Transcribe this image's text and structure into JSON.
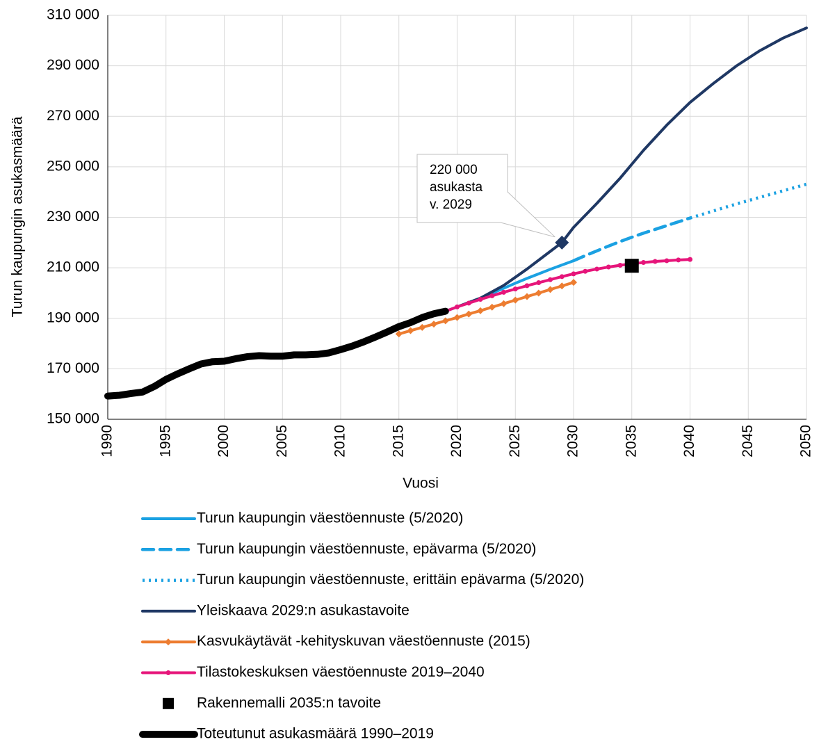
{
  "chart_data": {
    "type": "line",
    "xlabel": "Vuosi",
    "ylabel": "Turun kaupungin asukasmäärä",
    "xlim": [
      1990,
      2050
    ],
    "xticks": [
      1990,
      1995,
      2000,
      2005,
      2010,
      2015,
      2020,
      2025,
      2030,
      2035,
      2040,
      2045,
      2050
    ],
    "ylim": [
      150000,
      310000
    ],
    "yticks": [
      {
        "value": 150000,
        "label": "150 000"
      },
      {
        "value": 170000,
        "label": "170 000"
      },
      {
        "value": 190000,
        "label": "190 000"
      },
      {
        "value": 210000,
        "label": "210 000"
      },
      {
        "value": 230000,
        "label": "230 000"
      },
      {
        "value": 250000,
        "label": "250 000"
      },
      {
        "value": 270000,
        "label": "270 000"
      },
      {
        "value": 290000,
        "label": "290 000"
      },
      {
        "value": 310000,
        "label": "310 000"
      }
    ],
    "grid": true,
    "series": [
      {
        "name": "Turun kaupungin väestöennuste (5/2020)",
        "color": "#1ba1e2",
        "linestyle": "solid",
        "x": [
          2019,
          2020,
          2021,
          2022,
          2023,
          2024,
          2025,
          2026,
          2027,
          2028,
          2029,
          2030
        ],
        "values": [
          192800,
          194500,
          196200,
          198000,
          199900,
          201900,
          203900,
          205800,
          207600,
          209400,
          211100,
          212800
        ]
      },
      {
        "name": "Turun kaupungin väestöennuste, epävarma (5/2020)",
        "color": "#1ba1e2",
        "linestyle": "dashed",
        "x": [
          2030,
          2031,
          2032,
          2033,
          2034,
          2035,
          2036,
          2037,
          2038,
          2039,
          2040
        ],
        "values": [
          212800,
          214800,
          216700,
          218600,
          220400,
          222100,
          223700,
          225200,
          226700,
          228200,
          229700
        ]
      },
      {
        "name": "Turun kaupungin väestöennuste, erittäin epävarma (5/2020)",
        "color": "#1ba1e2",
        "linestyle": "dotted",
        "x": [
          2040,
          2041,
          2042,
          2043,
          2044,
          2045,
          2046,
          2047,
          2048,
          2049,
          2050
        ],
        "values": [
          229700,
          231100,
          232500,
          233900,
          235300,
          236600,
          237900,
          239200,
          240500,
          241800,
          243100
        ]
      },
      {
        "name": "Yleiskaava 2029:n asukastavoite",
        "color": "#1f3864",
        "linestyle": "solid",
        "x": [
          2020,
          2022,
          2024,
          2026,
          2028,
          2029,
          2030,
          2032,
          2034,
          2036,
          2038,
          2040,
          2042,
          2044,
          2046,
          2048,
          2050
        ],
        "values": [
          194500,
          198000,
          203000,
          209500,
          216500,
          220000,
          226000,
          235500,
          245500,
          256500,
          266500,
          275500,
          283000,
          290000,
          296000,
          301000,
          305000
        ]
      },
      {
        "name": "Kasvukäytävät -kehityskuvan väestöennuste (2015)",
        "color": "#ed7d31",
        "linestyle": "solid",
        "marker": "diamond",
        "x": [
          2015,
          2016,
          2017,
          2018,
          2019,
          2020,
          2021,
          2022,
          2023,
          2024,
          2025,
          2026,
          2027,
          2028,
          2029,
          2030
        ],
        "values": [
          183800,
          185100,
          186400,
          187700,
          189000,
          190300,
          191700,
          193000,
          194400,
          195800,
          197200,
          198600,
          200000,
          201400,
          202800,
          204200
        ]
      },
      {
        "name": "Tilastokeskuksen väestöennuste 2019–2040",
        "color": "#e6157a",
        "linestyle": "solid",
        "marker": "circle",
        "x": [
          2019,
          2020,
          2021,
          2022,
          2023,
          2024,
          2025,
          2026,
          2027,
          2028,
          2029,
          2030,
          2031,
          2032,
          2033,
          2034,
          2035,
          2036,
          2037,
          2038,
          2039,
          2040
        ],
        "values": [
          192800,
          194500,
          196000,
          197500,
          198900,
          200300,
          201600,
          202900,
          204100,
          205300,
          206500,
          207600,
          208600,
          209500,
          210300,
          211000,
          211600,
          212100,
          212500,
          212800,
          213100,
          213300
        ]
      },
      {
        "name": "Rakennemalli 2035:n tavoite",
        "color": "#000000",
        "linestyle": "none",
        "marker": "square",
        "x": [
          2035
        ],
        "values": [
          210800
        ]
      },
      {
        "name": "Toteutunut asukasmäärä 1990–2019",
        "color": "#000000",
        "linestyle": "bold",
        "x": [
          1990,
          1991,
          1992,
          1993,
          1994,
          1995,
          1996,
          1997,
          1998,
          1999,
          2000,
          2001,
          2002,
          2003,
          2004,
          2005,
          2006,
          2007,
          2008,
          2009,
          2010,
          2011,
          2012,
          2013,
          2014,
          2015,
          2016,
          2017,
          2018,
          2019
        ],
        "values": [
          159200,
          159500,
          160200,
          160800,
          163000,
          165800,
          168000,
          170000,
          171900,
          172800,
          173000,
          174000,
          174800,
          175200,
          175000,
          175000,
          175500,
          175500,
          175700,
          176300,
          177600,
          179000,
          180700,
          182600,
          184600,
          186700,
          188300,
          190300,
          191800,
          192800
        ]
      }
    ],
    "annotation": {
      "lines": [
        "220 000",
        "asukasta",
        "v. 2029"
      ],
      "x": 2029,
      "y": 220000,
      "color": "#1f3864"
    }
  }
}
